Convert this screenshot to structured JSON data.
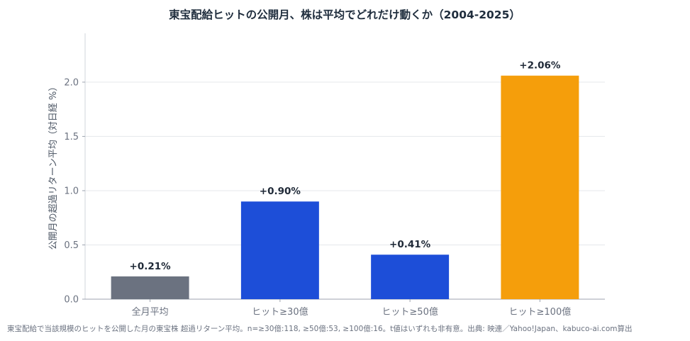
{
  "chart_data": {
    "type": "bar",
    "title": "東宝配給ヒットの公開月、株は平均でどれだけ動くか（2004-2025）",
    "ylabel": "公開月の超過リターン平均（対日経 %）",
    "xlabel": "",
    "categories": [
      "全月平均",
      "ヒット≥30億",
      "ヒット≥50億",
      "ヒット≥100億"
    ],
    "values": [
      0.21,
      0.9,
      0.41,
      2.06
    ],
    "value_labels": [
      "+0.21%",
      "+0.90%",
      "+0.41%",
      "+2.06%"
    ],
    "bar_colors": [
      "#6b7280",
      "#1d4ed8",
      "#1d4ed8",
      "#f59e0b"
    ],
    "ylim": [
      0,
      2.45
    ],
    "yticks": [
      0.0,
      0.5,
      1.0,
      1.5,
      2.0
    ],
    "ytick_labels": [
      "0.0",
      "0.5",
      "1.0",
      "1.5",
      "2.0"
    ],
    "grid": true,
    "footnote": "東宝配給で当該規模のヒットを公開した月の東宝株 超過リターン平均。n=≥30億:118, ≥50億:53, ≥100億:16。t値はいずれも非有意。出典: 映連／Yahoo!Japan、kabuco-ai.com算出"
  }
}
